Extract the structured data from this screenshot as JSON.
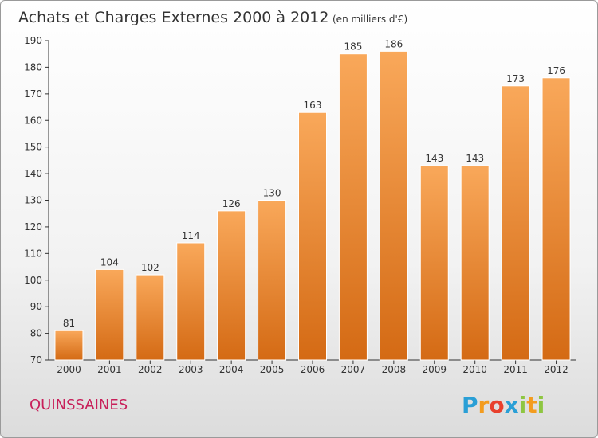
{
  "chart_data": {
    "type": "bar",
    "title": "Achats et Charges Externes 2000 à 2012",
    "subtitle": "(en milliers d'€)",
    "xlabel": "",
    "ylabel": "",
    "categories": [
      "2000",
      "2001",
      "2002",
      "2003",
      "2004",
      "2005",
      "2006",
      "2007",
      "2008",
      "2009",
      "2010",
      "2011",
      "2012"
    ],
    "values": [
      81,
      104,
      102,
      114,
      126,
      130,
      163,
      185,
      186,
      143,
      143,
      173,
      176
    ],
    "value_labels": [
      "81",
      "104",
      "102",
      "114",
      "126",
      "130",
      "163",
      "185",
      "186",
      "143",
      "143",
      "173",
      "176"
    ],
    "ylim": [
      70,
      190
    ],
    "yticks": [
      "70",
      "80",
      "90",
      "100",
      "110",
      "120",
      "130",
      "140",
      "150",
      "160",
      "170",
      "180",
      "190"
    ],
    "grid": false,
    "legend": "none",
    "colors": {
      "bar_top": "#f9a85a",
      "bar_bottom": "#d46a14",
      "axis": "#333333"
    }
  },
  "footer": {
    "commune": "QUINSSAINES",
    "logo_letters": [
      "P",
      "r",
      "o",
      "x",
      "i",
      "t",
      "i"
    ],
    "logo_colors": [
      "#2a9fd6",
      "#f39c1f",
      "#e8412e",
      "#2a9fd6",
      "#8ec641",
      "#f39c1f",
      "#8ec641"
    ]
  }
}
